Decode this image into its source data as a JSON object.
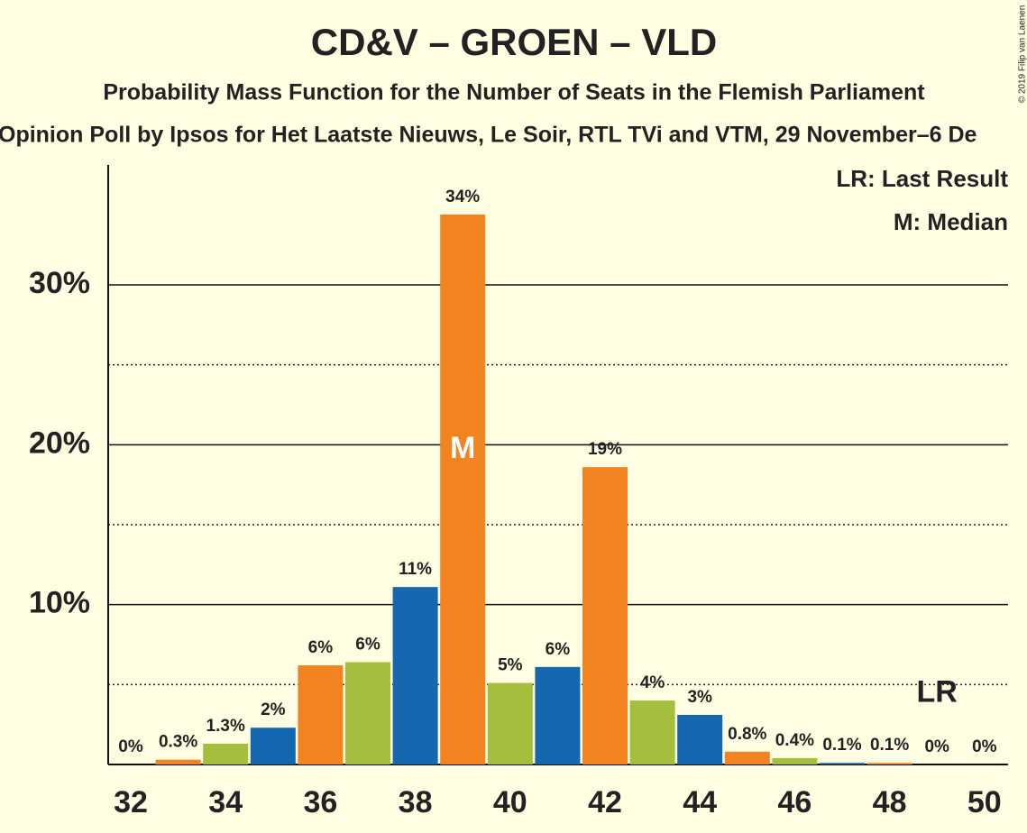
{
  "chart_data": {
    "type": "bar",
    "title": "CD&V – GROEN – VLD",
    "subtitle": "Probability Mass Function for the Number of Seats in the Flemish Parliament",
    "subtitle2": "Opinion Poll by Ipsos for Het Laatste Nieuws, Le Soir, RTL TVi and VTM, 29 November–6 De",
    "copyright": "© 2019 Filip van Laenen",
    "legend": [
      "LR: Last Result",
      "M: Median"
    ],
    "categories": [
      32,
      null,
      34,
      null,
      36,
      null,
      38,
      null,
      40,
      null,
      42,
      null,
      44,
      null,
      46,
      null,
      48,
      null,
      50
    ],
    "values": [
      0,
      0.3,
      1.3,
      2.3,
      6.2,
      6.4,
      11.1,
      34.4,
      5.1,
      6.1,
      18.6,
      4.0,
      3.1,
      0.8,
      0.4,
      0.1,
      0.1,
      0,
      0
    ],
    "value_labels": [
      "0%",
      "0.3%",
      "1.3%",
      "2%",
      "6%",
      "6%",
      "11%",
      "34%",
      "5%",
      "6%",
      "19%",
      "4%",
      "3%",
      "0.8%",
      "0.4%",
      "0.1%",
      "0.1%",
      "0%",
      "0%"
    ],
    "colors": [
      "#1567b0",
      "#f28321",
      "#a4be3e",
      "#1567b0",
      "#f28321",
      "#a4be3e",
      "#1567b0",
      "#f28321",
      "#a4be3e",
      "#1567b0",
      "#f28321",
      "#a4be3e",
      "#1567b0",
      "#f28321",
      "#a4be3e",
      "#1567b0",
      "#f28321",
      "#a4be3e",
      "#1567b0"
    ],
    "annotations": [
      {
        "text": "M",
        "index": 7
      },
      {
        "text": "LR",
        "index": 17
      }
    ],
    "ylim": [
      0,
      37.5
    ],
    "yticks": [
      {
        "value": 10,
        "label": "10%"
      },
      {
        "value": 20,
        "label": "20%"
      },
      {
        "value": 30,
        "label": "30%"
      }
    ],
    "minor_gridlines": [
      5,
      15,
      25
    ],
    "grid": true
  }
}
